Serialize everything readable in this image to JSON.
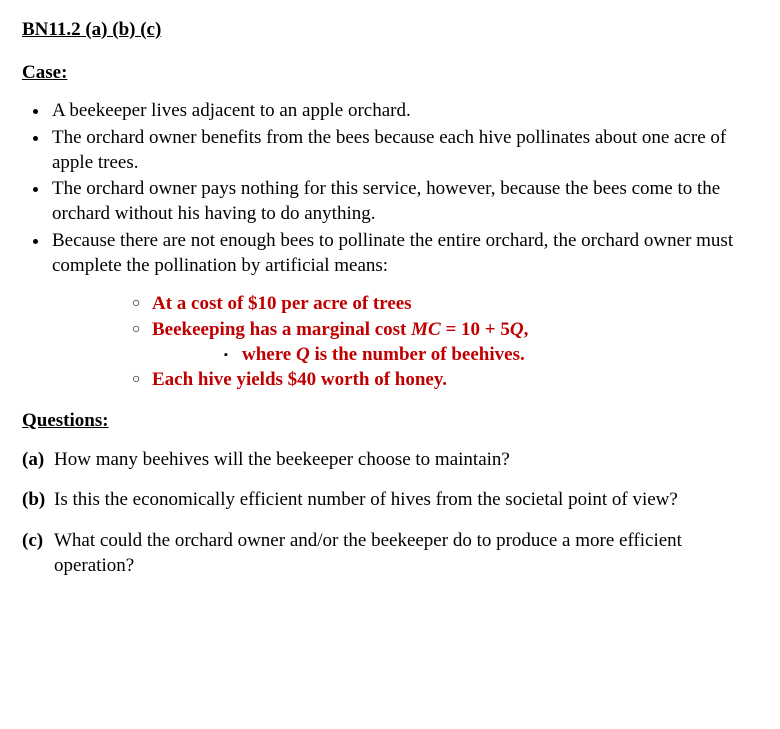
{
  "title_main": "BN11.2",
  "title_rest": " (a) (b) (c)",
  "case_heading": "Case",
  "bullets": [
    "A beekeeper lives adjacent to an apple orchard.",
    "The orchard owner benefits from the bees because each hive pollinates about one acre of apple trees.",
    "The orchard owner pays nothing for this service, however, because the bees come to the orchard without his having to do anything.",
    "Because there are not enough bees to pollinate the entire orchard, the orchard owner must complete the pollination by artificial means:"
  ],
  "highlights": {
    "h1": "At a cost of $10 per acre of trees",
    "h2_a": "Beekeeping has a marginal cost ",
    "h2_mc": "MC",
    "h2_b": " = 10 + 5",
    "h2_q": "Q",
    "h2_c": ",",
    "h2_sub_a": "where ",
    "h2_sub_q": "Q",
    "h2_sub_b": " is the number of beehives.",
    "h3": "Each hive yields $40 worth of honey."
  },
  "questions_heading": "Questions",
  "questions": [
    {
      "label": "(a)",
      "text": "How many beehives will the beekeeper choose to maintain?"
    },
    {
      "label": "(b)",
      "text": "Is this the economically efficient number of hives from the societal point of view?"
    },
    {
      "label": "(c)",
      "text": "What could the orchard owner and/or the beekeeper do to produce a more efficient operation?"
    }
  ],
  "colors": {
    "highlight": "#c00000",
    "text": "#000000",
    "bg": "#ffffff"
  }
}
